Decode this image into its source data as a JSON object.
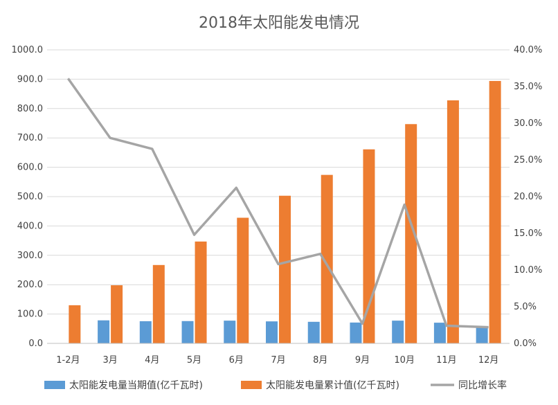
{
  "chart_data": {
    "type": "bar",
    "title": "2018年太阳能发电情况",
    "categories": [
      "1-2月",
      "3月",
      "4月",
      "5月",
      "6月",
      "7月",
      "8月",
      "9月",
      "10月",
      "11月",
      "12月"
    ],
    "series": [
      {
        "name": "太阳能发电量当期值(亿千瓦时)",
        "type": "bar",
        "axis": "left",
        "color": "#5b9bd5",
        "values": [
          null,
          78.5,
          75.5,
          76.0,
          77.5,
          75.0,
          73.5,
          71.0,
          77.5,
          70.5,
          58.0
        ]
      },
      {
        "name": "太阳能发电量累计值(亿千瓦时)",
        "type": "bar",
        "axis": "left",
        "color": "#ed7d31",
        "values": [
          130.0,
          198.0,
          267.0,
          347.0,
          428.0,
          503.0,
          574.0,
          661.0,
          747.0,
          828.0,
          894.0
        ]
      },
      {
        "name": "同比增长率",
        "type": "line",
        "axis": "right",
        "color": "#a5a5a5",
        "values": [
          0.361,
          0.28,
          0.265,
          0.148,
          0.212,
          0.108,
          0.122,
          0.027,
          0.189,
          0.024,
          0.022
        ]
      }
    ],
    "y_left": {
      "min": 0,
      "max": 1000,
      "step": 100,
      "ticks": [
        "0.0",
        "100.0",
        "200.0",
        "300.0",
        "400.0",
        "500.0",
        "600.0",
        "700.0",
        "800.0",
        "900.0",
        "1000.0"
      ]
    },
    "y_right": {
      "min": 0,
      "max": 0.4,
      "step": 0.05,
      "ticks": [
        "0.0%",
        "5.0%",
        "10.0%",
        "15.0%",
        "20.0%",
        "25.0%",
        "30.0%",
        "35.0%",
        "40.0%"
      ]
    },
    "grid": true,
    "legend": "bottom",
    "gridline_color": "#d9d9d9",
    "axis_color": "#bfbfbf"
  }
}
